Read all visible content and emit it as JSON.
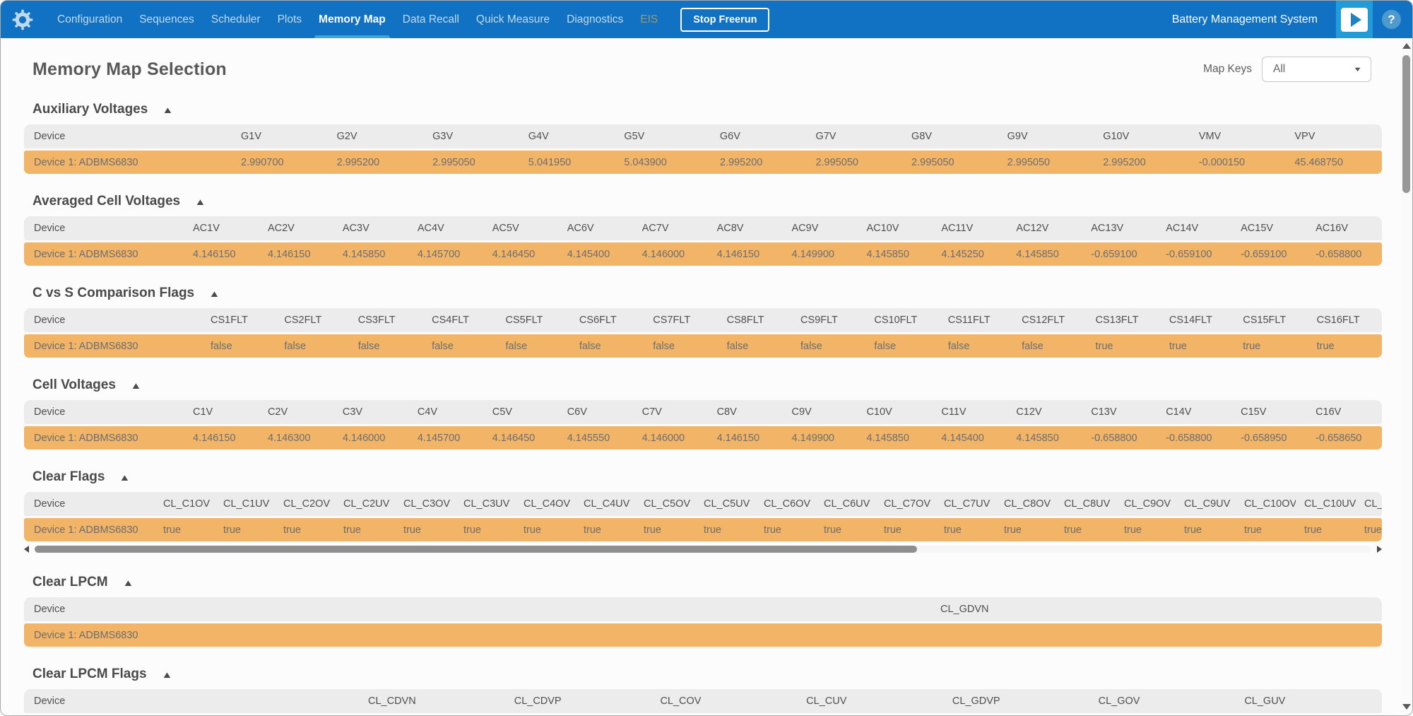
{
  "nav": {
    "items": [
      {
        "label": "Configuration"
      },
      {
        "label": "Sequences"
      },
      {
        "label": "Scheduler"
      },
      {
        "label": "Plots"
      },
      {
        "label": "Memory Map",
        "active": true
      },
      {
        "label": "Data Recall"
      },
      {
        "label": "Quick Measure"
      },
      {
        "label": "Diagnostics"
      },
      {
        "label": "EIS",
        "disabled": true
      }
    ],
    "stop_button": "Stop Freerun",
    "app_title": "Battery Management System"
  },
  "page": {
    "title": "Memory Map Selection",
    "map_keys_label": "Map Keys",
    "map_keys_value": "All"
  },
  "icons": {
    "collapse_glyph": "▲",
    "dropdown_caret": "▼",
    "help_glyph": "?"
  },
  "colors": {
    "nav_blue": "#1171C3",
    "accent_blue": "#219CD8",
    "active_tab_underline": "#3FA3DC",
    "row_orange": "#F2B467",
    "header_row_gray": "#ECECEC"
  },
  "sections": [
    {
      "title": "Auxiliary Voltages",
      "columns": [
        "Device",
        "G1V",
        "G2V",
        "G3V",
        "G4V",
        "G5V",
        "G6V",
        "G7V",
        "G8V",
        "G9V",
        "G10V",
        "VMV",
        "VPV"
      ],
      "rows": [
        [
          "Device 1: ADBMS6830",
          "2.990700",
          "2.995200",
          "2.995050",
          "5.041950",
          "5.043900",
          "2.995200",
          "2.995050",
          "2.995050",
          "2.995050",
          "2.995200",
          "-0.000150",
          "45.468750"
        ]
      ]
    },
    {
      "title": "Averaged Cell Voltages",
      "columns": [
        "Device",
        "AC1V",
        "AC2V",
        "AC3V",
        "AC4V",
        "AC5V",
        "AC6V",
        "AC7V",
        "AC8V",
        "AC9V",
        "AC10V",
        "AC11V",
        "AC12V",
        "AC13V",
        "AC14V",
        "AC15V",
        "AC16V"
      ],
      "rows": [
        [
          "Device 1: ADBMS6830",
          "4.146150",
          "4.146150",
          "4.145850",
          "4.145700",
          "4.146450",
          "4.145400",
          "4.146000",
          "4.146150",
          "4.149900",
          "4.145850",
          "4.145250",
          "4.145850",
          "-0.659100",
          "-0.659100",
          "-0.659100",
          "-0.658800"
        ]
      ]
    },
    {
      "title": "C vs S Comparison Flags",
      "columns": [
        "Device",
        "CS1FLT",
        "CS2FLT",
        "CS3FLT",
        "CS4FLT",
        "CS5FLT",
        "CS6FLT",
        "CS7FLT",
        "CS8FLT",
        "CS9FLT",
        "CS10FLT",
        "CS11FLT",
        "CS12FLT",
        "CS13FLT",
        "CS14FLT",
        "CS15FLT",
        "CS16FLT"
      ],
      "rows": [
        [
          "Device 1: ADBMS6830",
          "false",
          "false",
          "false",
          "false",
          "false",
          "false",
          "false",
          "false",
          "false",
          "false",
          "false",
          "false",
          "true",
          "true",
          "true",
          "true"
        ]
      ]
    },
    {
      "title": "Cell Voltages",
      "columns": [
        "Device",
        "C1V",
        "C2V",
        "C3V",
        "C4V",
        "C5V",
        "C6V",
        "C7V",
        "C8V",
        "C9V",
        "C10V",
        "C11V",
        "C12V",
        "C13V",
        "C14V",
        "C15V",
        "C16V"
      ],
      "rows": [
        [
          "Device 1: ADBMS6830",
          "4.146150",
          "4.146300",
          "4.146000",
          "4.145700",
          "4.146450",
          "4.145550",
          "4.146000",
          "4.146150",
          "4.149900",
          "4.145850",
          "4.145400",
          "4.145850",
          "-0.658800",
          "-0.658800",
          "-0.658950",
          "-0.658650"
        ]
      ]
    },
    {
      "title": "Clear Flags",
      "columns": [
        "Device",
        "CL_C1OV",
        "CL_C1UV",
        "CL_C2OV",
        "CL_C2UV",
        "CL_C3OV",
        "CL_C3UV",
        "CL_C4OV",
        "CL_C4UV",
        "CL_C5OV",
        "CL_C5UV",
        "CL_C6OV",
        "CL_C6UV",
        "CL_C7OV",
        "CL_C7UV",
        "CL_C8OV",
        "CL_C8UV",
        "CL_C9OV",
        "CL_C9UV",
        "CL_C10OV",
        "CL_C10UV",
        "CL_"
      ],
      "rows": [
        [
          "Device 1: ADBMS6830",
          "true",
          "true",
          "true",
          "true",
          "true",
          "true",
          "true",
          "true",
          "true",
          "true",
          "true",
          "true",
          "true",
          "true",
          "true",
          "true",
          "true",
          "true",
          "true",
          "true",
          "true"
        ]
      ]
    },
    {
      "title": "Clear LPCM",
      "columns": [
        "Device",
        "CL_GDVN"
      ],
      "rows": [
        [
          "Device 1: ADBMS6830",
          ""
        ]
      ]
    },
    {
      "title": "Clear LPCM Flags",
      "columns": [
        "Device",
        "CL_CDVN",
        "CL_CDVP",
        "CL_COV",
        "CL_CUV",
        "CL_GDVP",
        "CL_GOV",
        "CL_GUV"
      ],
      "rows": [
        [
          "",
          "",
          "",
          "",
          "",
          "",
          "",
          ""
        ]
      ]
    }
  ]
}
